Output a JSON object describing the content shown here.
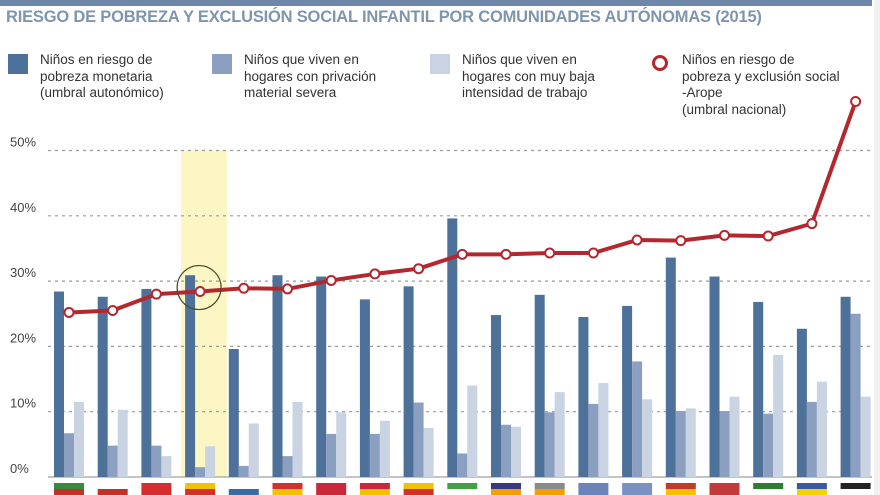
{
  "title": "RIESGO DE POBREZA Y EXCLUSIÓN SOCIAL INFANTIL POR COMUNIDADES AUTÓNOMAS (2015)",
  "colors": {
    "title": "#7f95ad",
    "topbar": "#6f87a8",
    "monetary": "#4d7199",
    "material": "#8b9fc1",
    "work": "#c9d3e2",
    "arope": "#b3282f",
    "highlight": "#fbf6c4",
    "grid": "#9a9a9a"
  },
  "legend": [
    {
      "key": "monetary",
      "icon": "square-swatch",
      "lines": [
        "Niños en riesgo de",
        "pobreza monetaria",
        "(umbral autonómico)"
      ]
    },
    {
      "key": "material",
      "icon": "square-swatch",
      "lines": [
        "Niños que viven en",
        "hogares con privación",
        "material severa"
      ]
    },
    {
      "key": "work",
      "icon": "square-swatch",
      "lines": [
        "Niños que viven en",
        "hogares con muy baja",
        "intensidad de trabajo"
      ]
    },
    {
      "key": "arope",
      "icon": "ring-marker",
      "lines": [
        "Niños en riesgo de",
        "pobreza y exclusión social",
        "-Arope",
        "(umbral nacional)"
      ]
    }
  ],
  "chart_data": {
    "type": "bar",
    "title": "RIESGO DE POBREZA Y EXCLUSIÓN SOCIAL INFANTIL POR COMUNIDADES AUTÓNOMAS (2015)",
    "xlabel": "",
    "ylabel": "",
    "ylim": [
      0,
      50
    ],
    "yticks": [
      "0%",
      "10%",
      "20%",
      "30%",
      "40%",
      "50%"
    ],
    "ytick_values": [
      0,
      10,
      20,
      30,
      40,
      50
    ],
    "grid": true,
    "legend_position": "top",
    "categories_note": "Categories shown as regional flags (no text labels)",
    "categories": [
      "flag-1",
      "flag-2",
      "flag-3",
      "flag-4",
      "flag-5",
      "flag-6",
      "flag-7",
      "flag-8",
      "flag-9",
      "flag-10",
      "flag-11",
      "flag-12",
      "flag-13",
      "flag-14",
      "flag-15",
      "flag-16",
      "flag-17",
      "flag-18",
      "flag-19"
    ],
    "highlighted_index": 3,
    "series": [
      {
        "name": "Niños en riesgo de pobreza monetaria (umbral autonómico)",
        "type": "bar",
        "values": [
          28.4,
          27.6,
          28.8,
          30.9,
          19.6,
          30.9,
          30.7,
          27.2,
          29.2,
          39.6,
          24.8,
          27.9,
          24.5,
          26.2,
          33.6,
          30.7,
          26.8,
          22.7,
          27.6
        ]
      },
      {
        "name": "Niños que viven en hogares con privación material severa",
        "type": "bar",
        "values": [
          6.7,
          4.8,
          4.8,
          1.5,
          1.7,
          3.2,
          6.6,
          6.6,
          11.4,
          3.6,
          8.0,
          9.9,
          11.2,
          17.7,
          10.1,
          10.1,
          9.7,
          11.5,
          25.0
        ]
      },
      {
        "name": "Niños que viven en hogares con muy baja intensidad de trabajo",
        "type": "bar",
        "values": [
          11.5,
          10.3,
          3.2,
          4.7,
          8.2,
          11.5,
          9.9,
          8.6,
          7.5,
          14.0,
          7.7,
          13.0,
          14.4,
          11.9,
          10.5,
          12.3,
          18.7,
          14.6,
          12.3
        ]
      },
      {
        "name": "Niños en riesgo de pobreza y exclusión social -Arope (umbral nacional)",
        "type": "line",
        "values": [
          25.2,
          25.5,
          28.0,
          28.4,
          28.9,
          28.8,
          30.1,
          31.1,
          31.9,
          34.1,
          34.1,
          34.3,
          34.3,
          36.3,
          36.2,
          37.0,
          36.9,
          38.8,
          57.5
        ]
      }
    ],
    "flags": [
      {
        "colors": [
          "#3b8a3e",
          "#c4302b"
        ]
      },
      {
        "colors": [
          "#ffffff",
          "#c4302b"
        ]
      },
      {
        "colors": [
          "#d42e2e",
          "#d42e2e"
        ]
      },
      {
        "colors": [
          "#f2c200",
          "#d2312b"
        ]
      },
      {
        "colors": [
          "#ffffff",
          "#3a6aa0"
        ]
      },
      {
        "colors": [
          "#d2312b",
          "#f2c200"
        ]
      },
      {
        "colors": [
          "#c8283a",
          "#c8283a"
        ]
      },
      {
        "colors": [
          "#c8283a",
          "#f2c200"
        ]
      },
      {
        "colors": [
          "#f2c200",
          "#d2312b"
        ]
      },
      {
        "colors": [
          "#43a047",
          "#ffffff"
        ]
      },
      {
        "colors": [
          "#3a3a7a",
          "#f2a000"
        ]
      },
      {
        "colors": [
          "#8a8a8a",
          "#f2a000"
        ]
      },
      {
        "colors": [
          "#6a84b8",
          "#6a84b8"
        ]
      },
      {
        "colors": [
          "#7a92c2",
          "#7a92c2"
        ]
      },
      {
        "colors": [
          "#c23a2a",
          "#f2c200"
        ]
      },
      {
        "colors": [
          "#c23a3a",
          "#c23a3a"
        ]
      },
      {
        "colors": [
          "#2e7d32",
          "#ffffff"
        ]
      },
      {
        "colors": [
          "#3a5aa0",
          "#f2d200"
        ]
      },
      {
        "colors": [
          "#222222",
          "#ffffff"
        ]
      }
    ]
  }
}
